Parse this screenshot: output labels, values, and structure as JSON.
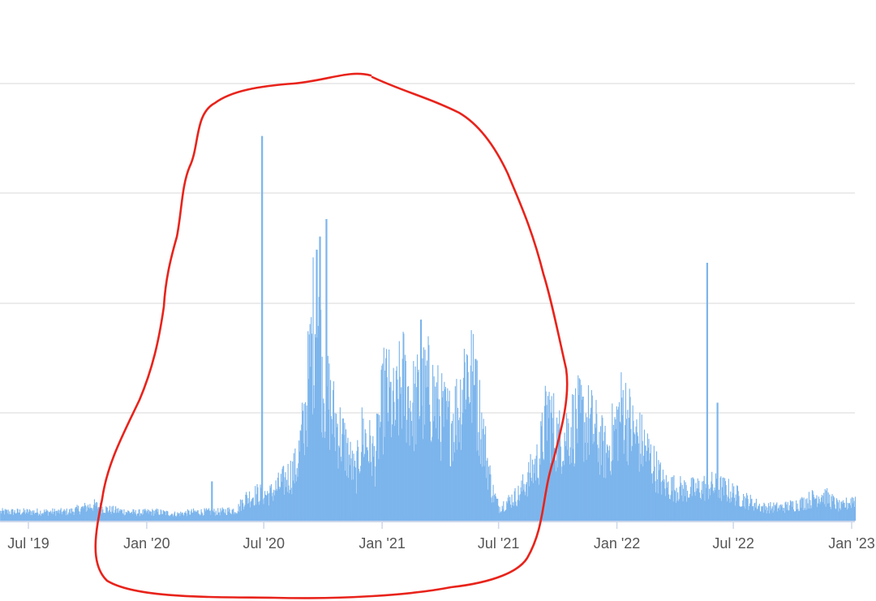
{
  "chart_data": {
    "type": "bar",
    "title": "",
    "xlabel": "",
    "ylabel": "",
    "grid": true,
    "legend": "none",
    "x_tick_labels": [
      "Jul '19",
      "Jan '20",
      "Jul '20",
      "Jan '21",
      "Jul '21",
      "Jan '22",
      "Jul '22",
      "Jan '23"
    ],
    "xlim": [
      "2019-05-01",
      "2023-02-01"
    ],
    "ylim_fraction_of_top_gridline": [
      0,
      1.18
    ],
    "series": [
      {
        "color": "#7cb5ec",
        "values_description_note": "",
        "points": [
          [
            "2019-05-01",
            0.02
          ],
          [
            "2019-07-01",
            0.02
          ],
          [
            "2019-09-01",
            0.02
          ],
          [
            "2019-10-10",
            0.035
          ],
          [
            "2019-11-01",
            0.025
          ],
          [
            "2019-12-15",
            0.018
          ],
          [
            "2020-01-15",
            0.02
          ],
          [
            "2020-02-15",
            0.015
          ],
          [
            "2020-03-15",
            0.02
          ],
          [
            "2020-04-10",
            0.09
          ],
          [
            "2020-04-20",
            0.02
          ],
          [
            "2020-05-20",
            0.025
          ],
          [
            "2020-06-01",
            0.05
          ],
          [
            "2020-06-20",
            0.06
          ],
          [
            "2020-06-27",
            0.88
          ],
          [
            "2020-07-10",
            0.06
          ],
          [
            "2020-08-01",
            0.09
          ],
          [
            "2020-08-20",
            0.12
          ],
          [
            "2020-09-01",
            0.22
          ],
          [
            "2020-09-10",
            0.35
          ],
          [
            "2020-09-18",
            0.48
          ],
          [
            "2020-09-20",
            0.62
          ],
          [
            "2020-09-25",
            0.65
          ],
          [
            "2020-10-01",
            0.32
          ],
          [
            "2020-10-05",
            0.69
          ],
          [
            "2020-10-15",
            0.24
          ],
          [
            "2020-11-01",
            0.18
          ],
          [
            "2020-11-20",
            0.1
          ],
          [
            "2020-12-01",
            0.2
          ],
          [
            "2020-12-20",
            0.14
          ],
          [
            "2021-01-05",
            0.3
          ],
          [
            "2021-01-20",
            0.24
          ],
          [
            "2021-02-01",
            0.32
          ],
          [
            "2021-02-15",
            0.26
          ],
          [
            "2021-03-01",
            0.46
          ],
          [
            "2021-03-15",
            0.3
          ],
          [
            "2021-04-01",
            0.24
          ],
          [
            "2021-04-15",
            0.22
          ],
          [
            "2021-05-01",
            0.26
          ],
          [
            "2021-05-10",
            0.36
          ],
          [
            "2021-05-20",
            0.32
          ],
          [
            "2021-05-25",
            0.37
          ],
          [
            "2021-06-01",
            0.24
          ],
          [
            "2021-06-20",
            0.07
          ],
          [
            "2021-07-01",
            0.03
          ],
          [
            "2021-08-01",
            0.06
          ],
          [
            "2021-09-01",
            0.14
          ],
          [
            "2021-09-15",
            0.25
          ],
          [
            "2021-10-01",
            0.18
          ],
          [
            "2021-11-01",
            0.23
          ],
          [
            "2021-11-20",
            0.22
          ],
          [
            "2021-12-15",
            0.15
          ],
          [
            "2022-01-10",
            0.26
          ],
          [
            "2022-01-25",
            0.2
          ],
          [
            "2022-02-15",
            0.16
          ],
          [
            "2022-03-15",
            0.08
          ],
          [
            "2022-04-15",
            0.07
          ],
          [
            "2022-05-01",
            0.07
          ],
          [
            "2022-05-20",
            0.59
          ],
          [
            "2022-05-25",
            0.08
          ],
          [
            "2022-06-05",
            0.27
          ],
          [
            "2022-06-20",
            0.07
          ],
          [
            "2022-07-15",
            0.05
          ],
          [
            "2022-08-15",
            0.03
          ],
          [
            "2022-09-15",
            0.03
          ],
          [
            "2022-10-15",
            0.04
          ],
          [
            "2022-11-15",
            0.06
          ],
          [
            "2022-12-15",
            0.03
          ],
          [
            "2023-01-05",
            0.05
          ],
          [
            "2023-01-25",
            0.03
          ]
        ]
      }
    ]
  },
  "colors": {
    "bar": "#7cb5ec",
    "gridline": "#e6e6e6",
    "axis": "#ccd6eb",
    "annotation": "#e8231b"
  },
  "annotation": {
    "type": "hand-drawn-circle",
    "color": "#e8231b",
    "encloses": [
      "Jan '20",
      "Jul '20",
      "Jan '21",
      "Jul '21"
    ]
  }
}
